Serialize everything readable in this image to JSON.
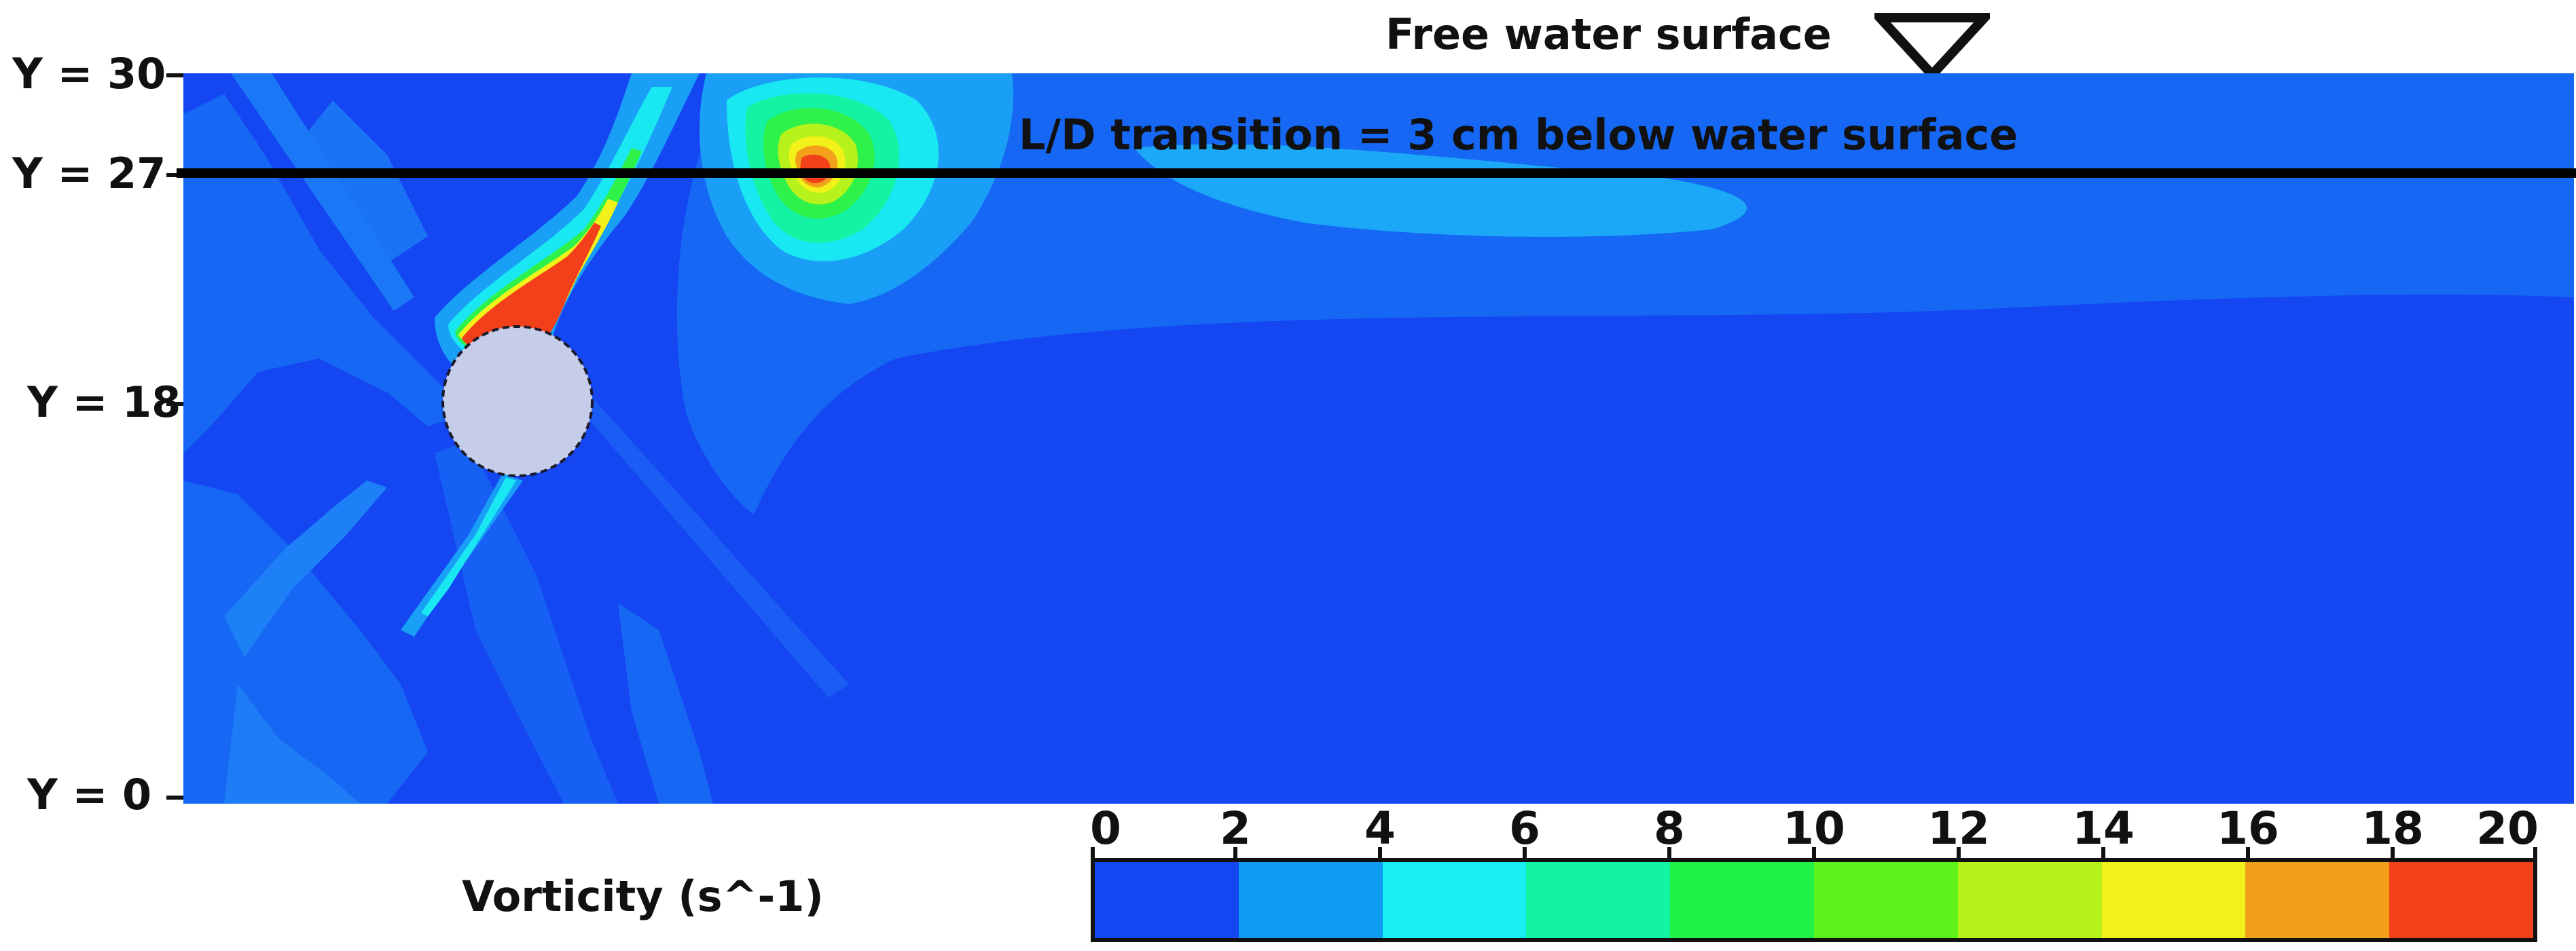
{
  "annotations": {
    "free_surface_label": "Free water surface",
    "transition_label": "L/D transition = 3 cm below water surface",
    "colorbar_title": "Vorticity (s^-1)"
  },
  "y_axis": {
    "labels": [
      "Y = 30",
      "Y = 27",
      "Y = 18",
      "Y = 0"
    ],
    "values": [
      30,
      27,
      18,
      0
    ]
  },
  "colorbar": {
    "ticks": [
      "0",
      "2",
      "4",
      "6",
      "8",
      "10",
      "12",
      "14",
      "16",
      "18",
      "20"
    ],
    "colors": [
      "#1446f2",
      "#0f9bf2",
      "#19eef2",
      "#14f2a3",
      "#1ef247",
      "#5cf21a",
      "#b8f21c",
      "#f2f21a",
      "#f2a01a",
      "#f2401a"
    ]
  },
  "colors": {
    "background": "#1446f2",
    "obstacle": "#c6cde8",
    "transition_line": "#000000"
  },
  "icons": {
    "free_surface_marker": "inverted-triangle-icon"
  }
}
